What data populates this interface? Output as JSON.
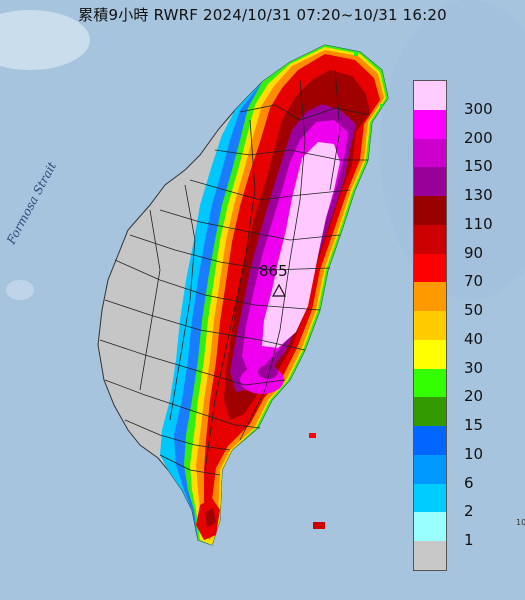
{
  "title": "累積9小時 RWRF 2024/10/31 07:20~10/31 16:20",
  "strait_label": "Formosa Strait",
  "peak_value": "865",
  "corner_mark": "10",
  "legend": [
    {
      "label": "300",
      "color": "#ffccff"
    },
    {
      "label": "200",
      "color": "#ff00ff"
    },
    {
      "label": "150",
      "color": "#cc00cc"
    },
    {
      "label": "130",
      "color": "#990099"
    },
    {
      "label": "110",
      "color": "#990000"
    },
    {
      "label": "90",
      "color": "#cc0000"
    },
    {
      "label": "70",
      "color": "#ff0000"
    },
    {
      "label": "50",
      "color": "#ff9900"
    },
    {
      "label": "40",
      "color": "#ffcc00"
    },
    {
      "label": "30",
      "color": "#ffff00"
    },
    {
      "label": "20",
      "color": "#33ff00"
    },
    {
      "label": "15",
      "color": "#339900"
    },
    {
      "label": "10",
      "color": "#0066ff"
    },
    {
      "label": "6",
      "color": "#0099ff"
    },
    {
      "label": "2",
      "color": "#00ccff"
    },
    {
      "label": "1",
      "color": "#99ffff"
    },
    {
      "label": "",
      "color": "#c8c8c8"
    }
  ]
}
